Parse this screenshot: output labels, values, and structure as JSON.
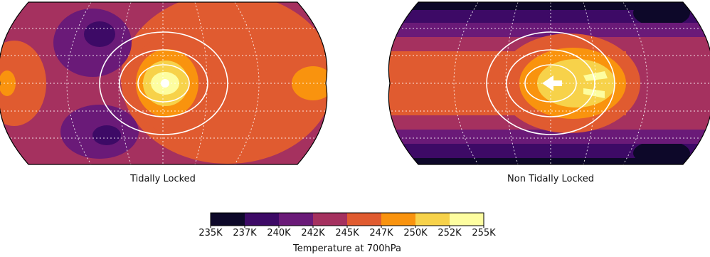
{
  "chart_data": [
    {
      "type": "heatmap",
      "projection": "robinson",
      "title": "Tidally Locked",
      "substellar_point": "center",
      "grid": true,
      "features": [
        {
          "kind": "hot-spot",
          "description_value": "255K",
          "location": "center"
        },
        {
          "kind": "cold-lobe",
          "description_value": "237K",
          "location": "upper-left"
        },
        {
          "kind": "cold-lobe",
          "description_value": "237K",
          "location": "lower-left"
        }
      ]
    },
    {
      "type": "heatmap",
      "projection": "robinson",
      "title": "Non Tidally Locked",
      "substellar_point": "center",
      "grid": true,
      "features": [
        {
          "kind": "hot-band",
          "description_value": "252K",
          "location": "center-right"
        },
        {
          "kind": "cold-band",
          "description_value": "235K",
          "location": "polar"
        }
      ]
    }
  ],
  "colorbar": {
    "label": "Temperature at 700hPa",
    "ticks": [
      "235K",
      "237K",
      "240K",
      "242K",
      "245K",
      "247K",
      "250K",
      "252K",
      "255K"
    ],
    "colors": [
      "#0d0829",
      "#3d0a66",
      "#6a1a78",
      "#a5315f",
      "#e05b30",
      "#f9930e",
      "#f7d24a",
      "#fdfda0"
    ]
  },
  "palette": {
    "c235": "#0d0829",
    "c237": "#3d0a66",
    "c240": "#6a1a78",
    "c242": "#a5315f",
    "c245": "#e05b30",
    "c247": "#f9930e",
    "c250": "#f7d24a",
    "c252": "#fdfda0"
  }
}
